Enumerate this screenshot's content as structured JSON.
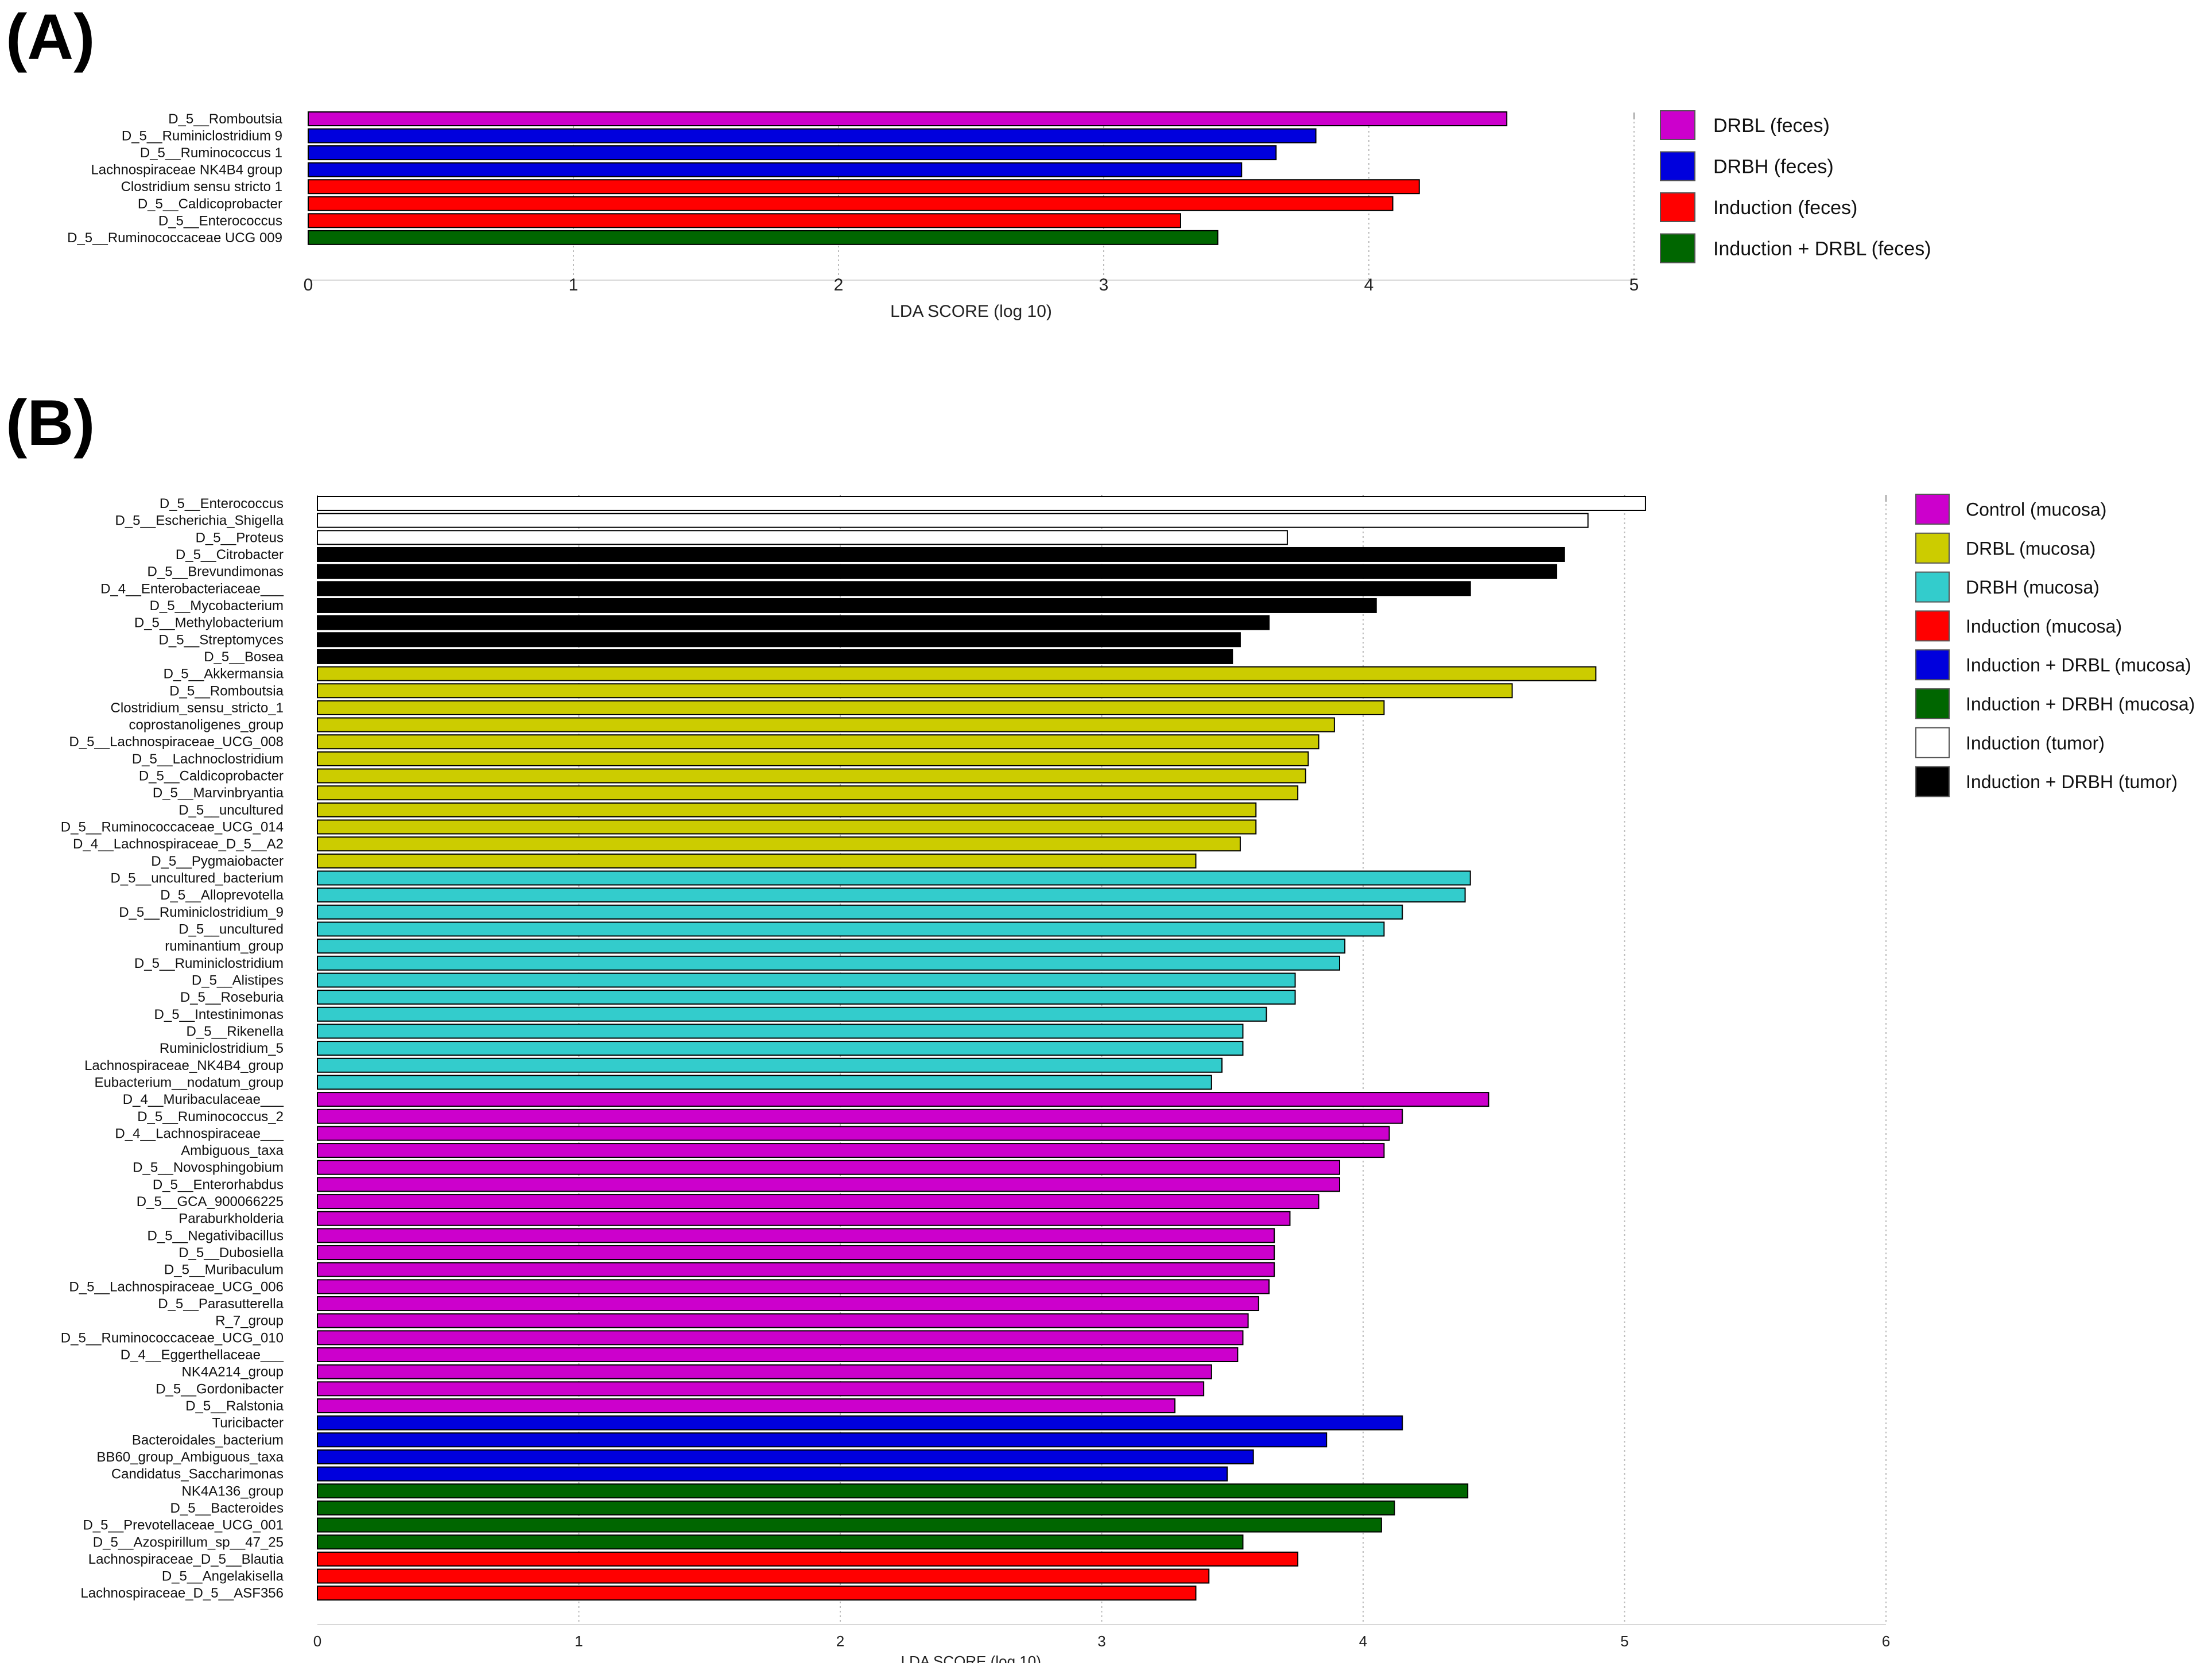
{
  "panels": [
    {
      "id": "A",
      "label": "(A)",
      "chart_data": {
        "type": "bar",
        "orientation": "horizontal",
        "title": "",
        "xlabel": "LDA SCORE (log 10)",
        "ylabel": "",
        "xlim": [
          0,
          5
        ],
        "xticks": [
          "0",
          "1",
          "2",
          "3",
          "4",
          "5"
        ],
        "grid": "vertical-dotted",
        "legend_position": "right",
        "legend": [
          {
            "label": "DRBL (feces)",
            "color": "#CC00CC"
          },
          {
            "label": "DRBH (feces)",
            "color": "#0000DD"
          },
          {
            "label": "Induction (feces)",
            "color": "#FF0000"
          },
          {
            "label": "Induction + DRBL (feces)",
            "color": "#006600"
          }
        ],
        "bars": [
          {
            "label": "D_5__Romboutsia",
            "value": 4.52,
            "group": 0
          },
          {
            "label": "D_5__Ruminiclostridium 9",
            "value": 3.8,
            "group": 1
          },
          {
            "label": "D_5__Ruminococcus 1",
            "value": 3.65,
            "group": 1
          },
          {
            "label": "Lachnospiraceae NK4B4 group",
            "value": 3.52,
            "group": 1
          },
          {
            "label": "Clostridium sensu stricto 1",
            "value": 4.19,
            "group": 2
          },
          {
            "label": "D_5__Caldicoprobacter",
            "value": 4.09,
            "group": 2
          },
          {
            "label": "D_5__Enterococcus",
            "value": 3.29,
            "group": 2
          },
          {
            "label": "D_5__Ruminococcaceae UCG 009",
            "value": 3.43,
            "group": 3
          }
        ]
      }
    },
    {
      "id": "B",
      "label": "(B)",
      "chart_data": {
        "type": "bar",
        "orientation": "horizontal",
        "title": "",
        "xlabel": "LDA SCORE (log 10)",
        "ylabel": "",
        "xlim": [
          0,
          6
        ],
        "xticks": [
          "0",
          "1",
          "2",
          "3",
          "4",
          "5",
          "6"
        ],
        "grid": "vertical-dotted",
        "legend_position": "right",
        "legend": [
          {
            "label": "Control (mucosa)",
            "color": "#CC00CC"
          },
          {
            "label": "DRBL (mucosa)",
            "color": "#CCCC00"
          },
          {
            "label": "DRBH (mucosa)",
            "color": "#33CCCC"
          },
          {
            "label": "Induction (mucosa)",
            "color": "#FF0000"
          },
          {
            "label": "Induction + DRBL (mucosa)",
            "color": "#0000DD"
          },
          {
            "label": "Induction + DRBH (mucosa)",
            "color": "#006600"
          },
          {
            "label": "Induction (tumor)",
            "color": "#FFFFFF"
          },
          {
            "label": "Induction + DRBH (tumor)",
            "color": "#000000"
          }
        ],
        "bars": [
          {
            "label": "D_5__Enterococcus",
            "value": 5.08,
            "group": 6
          },
          {
            "label": "D_5__Escherichia_Shigella",
            "value": 4.86,
            "group": 6
          },
          {
            "label": "D_5__Proteus",
            "value": 3.71,
            "group": 6
          },
          {
            "label": "D_5__Citrobacter",
            "value": 4.77,
            "group": 7
          },
          {
            "label": "D_5__Brevundimonas",
            "value": 4.74,
            "group": 7
          },
          {
            "label": "D_4__Enterobacteriaceae___",
            "value": 4.41,
            "group": 7
          },
          {
            "label": "D_5__Mycobacterium",
            "value": 4.05,
            "group": 7
          },
          {
            "label": "D_5__Methylobacterium",
            "value": 3.64,
            "group": 7
          },
          {
            "label": "D_5__Streptomyces",
            "value": 3.53,
            "group": 7
          },
          {
            "label": "D_5__Bosea",
            "value": 3.5,
            "group": 7
          },
          {
            "label": "D_5__Akkermansia",
            "value": 4.89,
            "group": 1
          },
          {
            "label": "D_5__Romboutsia",
            "value": 4.57,
            "group": 1
          },
          {
            "label": "Clostridium_sensu_stricto_1",
            "value": 4.08,
            "group": 1
          },
          {
            "label": "coprostanoligenes_group",
            "value": 3.89,
            "group": 1
          },
          {
            "label": "D_5__Lachnospiraceae_UCG_008",
            "value": 3.83,
            "group": 1
          },
          {
            "label": "D_5__Lachnoclostridium",
            "value": 3.79,
            "group": 1
          },
          {
            "label": "D_5__Caldicoprobacter",
            "value": 3.78,
            "group": 1
          },
          {
            "label": "D_5__Marvinbryantia",
            "value": 3.75,
            "group": 1
          },
          {
            "label": "D_5__uncultured",
            "value": 3.59,
            "group": 1
          },
          {
            "label": "D_5__Ruminococcaceae_UCG_014",
            "value": 3.59,
            "group": 1
          },
          {
            "label": "D_4__Lachnospiraceae_D_5__A2",
            "value": 3.53,
            "group": 1
          },
          {
            "label": "D_5__Pygmaiobacter",
            "value": 3.36,
            "group": 1
          },
          {
            "label": "D_5__uncultured_bacterium",
            "value": 4.41,
            "group": 2
          },
          {
            "label": "D_5__Alloprevotella",
            "value": 4.39,
            "group": 2
          },
          {
            "label": "D_5__Ruminiclostridium_9",
            "value": 4.15,
            "group": 2
          },
          {
            "label": "D_5__uncultured",
            "value": 4.08,
            "group": 2
          },
          {
            "label": "ruminantium_group",
            "value": 3.93,
            "group": 2
          },
          {
            "label": "D_5__Ruminiclostridium",
            "value": 3.91,
            "group": 2
          },
          {
            "label": "D_5__Alistipes",
            "value": 3.74,
            "group": 2
          },
          {
            "label": "D_5__Roseburia",
            "value": 3.74,
            "group": 2
          },
          {
            "label": "D_5__Intestinimonas",
            "value": 3.63,
            "group": 2
          },
          {
            "label": "D_5__Rikenella",
            "value": 3.54,
            "group": 2
          },
          {
            "label": "Ruminiclostridium_5",
            "value": 3.54,
            "group": 2
          },
          {
            "label": "Lachnospiraceae_NK4B4_group",
            "value": 3.46,
            "group": 2
          },
          {
            "label": "Eubacterium__nodatum_group",
            "value": 3.42,
            "group": 2
          },
          {
            "label": "D_4__Muribaculaceae___",
            "value": 4.48,
            "group": 0
          },
          {
            "label": "D_5__Ruminococcus_2",
            "value": 4.15,
            "group": 0
          },
          {
            "label": "D_4__Lachnospiraceae___",
            "value": 4.1,
            "group": 0
          },
          {
            "label": "Ambiguous_taxa",
            "value": 4.08,
            "group": 0
          },
          {
            "label": "D_5__Novosphingobium",
            "value": 3.91,
            "group": 0
          },
          {
            "label": "D_5__Enterorhabdus",
            "value": 3.91,
            "group": 0
          },
          {
            "label": "D_5__GCA_900066225",
            "value": 3.83,
            "group": 0
          },
          {
            "label": "Paraburkholderia",
            "value": 3.72,
            "group": 0
          },
          {
            "label": "D_5__Negativibacillus",
            "value": 3.66,
            "group": 0
          },
          {
            "label": "D_5__Dubosiella",
            "value": 3.66,
            "group": 0
          },
          {
            "label": "D_5__Muribaculum",
            "value": 3.66,
            "group": 0
          },
          {
            "label": "D_5__Lachnospiraceae_UCG_006",
            "value": 3.64,
            "group": 0
          },
          {
            "label": "D_5__Parasutterella",
            "value": 3.6,
            "group": 0
          },
          {
            "label": "R_7_group",
            "value": 3.56,
            "group": 0
          },
          {
            "label": "D_5__Ruminococcaceae_UCG_010",
            "value": 3.54,
            "group": 0
          },
          {
            "label": "D_4__Eggerthellaceae___",
            "value": 3.52,
            "group": 0
          },
          {
            "label": "NK4A214_group",
            "value": 3.42,
            "group": 0
          },
          {
            "label": "D_5__Gordonibacter",
            "value": 3.39,
            "group": 0
          },
          {
            "label": "D_5__Ralstonia",
            "value": 3.28,
            "group": 0
          },
          {
            "label": "Turicibacter",
            "value": 4.15,
            "group": 4
          },
          {
            "label": "Bacteroidales_bacterium",
            "value": 3.86,
            "group": 4
          },
          {
            "label": "BB60_group_Ambiguous_taxa",
            "value": 3.58,
            "group": 4
          },
          {
            "label": "Candidatus_Saccharimonas",
            "value": 3.48,
            "group": 4
          },
          {
            "label": "NK4A136_group",
            "value": 4.4,
            "group": 5
          },
          {
            "label": "D_5__Bacteroides",
            "value": 4.12,
            "group": 5
          },
          {
            "label": "D_5__Prevotellaceae_UCG_001",
            "value": 4.07,
            "group": 5
          },
          {
            "label": "D_5__Azospirillum_sp__47_25",
            "value": 3.54,
            "group": 5
          },
          {
            "label": "Lachnospiraceae_D_5__Blautia",
            "value": 3.75,
            "group": 3
          },
          {
            "label": "D_5__Angelakisella",
            "value": 3.41,
            "group": 3
          },
          {
            "label": "Lachnospiraceae_D_5__ASF356",
            "value": 3.36,
            "group": 3
          }
        ]
      }
    }
  ]
}
